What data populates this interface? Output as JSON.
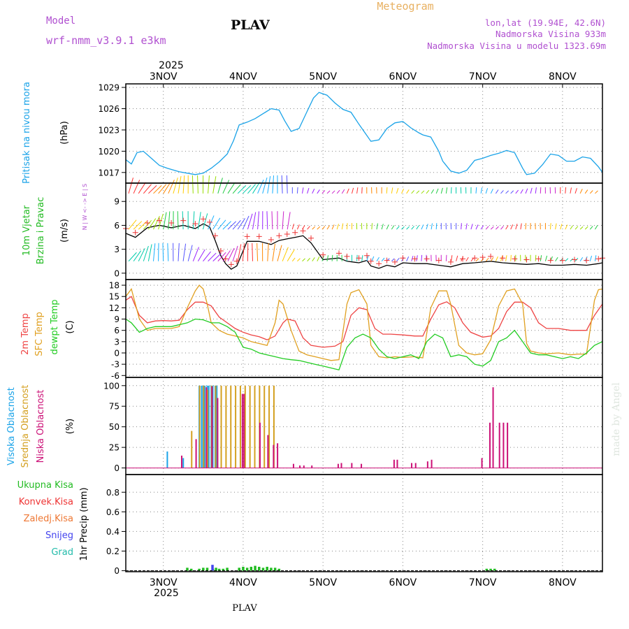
{
  "header": {
    "model_label": "Model",
    "model_value": "wrf-nmm_v3.9.1 e3km",
    "station": "PLAV",
    "chart_title": "Meteogram",
    "coords": "lon,lat (19.94E, 42.6N)",
    "elevation": "Nadmorska Visina 933m",
    "model_elevation": "Nadmorska Visina u modelu 1323.69m",
    "watermark": "made by Angel",
    "footer_station": "PLAV"
  },
  "time_axis": {
    "year": "2025",
    "labels": [
      "3NOV",
      "4NOV",
      "5NOV",
      "6NOV",
      "7NOV",
      "8NOV"
    ],
    "range_days": [
      2.53,
      8.5
    ]
  },
  "colors": {
    "pressure": "#1aa3e8",
    "wind_label": "#22bb22",
    "t2m": "#ee4444",
    "tsfc": "#e0a020",
    "dewpt": "#22cc22",
    "cloud_high": "#1aa3e8",
    "cloud_mid": "#d4a020",
    "cloud_low": "#cc1177",
    "precip_total": "#22bb22",
    "precip_conv": "#ee3333",
    "precip_freezing": "#ee7733",
    "snow": "#4444ee",
    "graupel": "#22bbaa",
    "title_purple": "#b050d0",
    "meteogram_title": "#e8b060"
  },
  "chart_data": [
    {
      "type": "line",
      "title": "Pritisak na nivou mora",
      "ylabel": "(hPa)",
      "ylim": [
        1015.5,
        1029.5
      ],
      "yticks": [
        1017,
        1020,
        1023,
        1026,
        1029
      ],
      "series": [
        {
          "name": "Pritisak na nivou mora",
          "x": [
            2.53,
            2.6,
            2.67,
            2.75,
            2.85,
            2.95,
            3.05,
            3.2,
            3.3,
            3.4,
            3.5,
            3.6,
            3.7,
            3.8,
            3.88,
            3.95,
            4.05,
            4.15,
            4.25,
            4.35,
            4.45,
            4.52,
            4.6,
            4.7,
            4.8,
            4.88,
            4.95,
            5.05,
            5.15,
            5.25,
            5.35,
            5.45,
            5.55,
            5.6,
            5.7,
            5.8,
            5.9,
            6.0,
            6.1,
            6.2,
            6.25,
            6.35,
            6.45,
            6.5,
            6.6,
            6.7,
            6.8,
            6.9,
            7.0,
            7.1,
            7.2,
            7.3,
            7.4,
            7.5,
            7.55,
            7.65,
            7.75,
            7.85,
            7.95,
            8.05,
            8.15,
            8.25,
            8.35,
            8.45,
            8.5
          ],
          "values": [
            1018.8,
            1018.2,
            1019.8,
            1020.0,
            1019.0,
            1018.0,
            1017.6,
            1017.1,
            1016.9,
            1016.7,
            1016.9,
            1017.6,
            1018.5,
            1019.6,
            1021.5,
            1023.7,
            1024.1,
            1024.6,
            1025.3,
            1026.0,
            1025.8,
            1024.3,
            1022.8,
            1023.2,
            1025.6,
            1027.5,
            1028.3,
            1027.9,
            1026.8,
            1025.9,
            1025.5,
            1023.8,
            1022.2,
            1021.4,
            1021.6,
            1023.2,
            1024.0,
            1024.2,
            1023.3,
            1022.6,
            1022.3,
            1022.0,
            1020.0,
            1018.6,
            1017.2,
            1016.9,
            1017.3,
            1018.7,
            1019.0,
            1019.4,
            1019.7,
            1020.1,
            1019.8,
            1017.6,
            1016.7,
            1016.9,
            1018.1,
            1019.6,
            1019.4,
            1018.6,
            1018.6,
            1019.2,
            1019.0,
            1017.8,
            1017.0
          ],
          "color": "#1aa3e8"
        }
      ]
    },
    {
      "type": "line",
      "title": "10m Vjetar Brzina i Pravac",
      "ylabel": "(m/s)",
      "compass": "N | W <- -> E | S",
      "ylim": [
        -0.8,
        11.3
      ],
      "yticks": [
        0,
        3,
        6,
        9
      ],
      "series": [
        {
          "name": "Brzina vjetra",
          "x": [
            2.53,
            2.65,
            2.8,
            2.95,
            3.1,
            3.25,
            3.4,
            3.5,
            3.58,
            3.65,
            3.72,
            3.78,
            3.85,
            3.92,
            4.05,
            4.2,
            4.35,
            4.45,
            4.55,
            4.65,
            4.75,
            4.85,
            5.0,
            5.2,
            5.3,
            5.45,
            5.55,
            5.6,
            5.7,
            5.8,
            5.9,
            6.0,
            6.15,
            6.3,
            6.45,
            6.6,
            6.75,
            6.9,
            7.0,
            7.1,
            7.25,
            7.4,
            7.55,
            7.7,
            7.85,
            8.0,
            8.15,
            8.3,
            8.45,
            8.5
          ],
          "values": [
            5.0,
            4.5,
            5.7,
            6.0,
            5.7,
            6.0,
            5.6,
            6.2,
            5.8,
            4.1,
            2.2,
            1.2,
            0.5,
            0.9,
            4.0,
            4.0,
            3.6,
            4.1,
            4.3,
            4.5,
            4.7,
            3.8,
            1.7,
            1.9,
            1.5,
            1.3,
            1.6,
            0.9,
            0.6,
            1.0,
            0.8,
            1.3,
            1.2,
            1.2,
            1.0,
            0.8,
            1.2,
            1.3,
            1.4,
            1.5,
            1.3,
            1.2,
            1.1,
            1.2,
            1.0,
            1.0,
            1.1,
            1.0,
            1.2,
            1.3
          ],
          "color": "#000000"
        }
      ],
      "wind_rows_ms": [
        10,
        5.5,
        1.5
      ]
    },
    {
      "type": "line",
      "title": "2m Temp / SFC Temp / dewpt Temp",
      "ylabel": "(C)",
      "ylim": [
        -6.5,
        19.5
      ],
      "yticks": [
        -6,
        -3,
        0,
        3,
        6,
        9,
        12,
        15,
        18
      ],
      "series": [
        {
          "name": "2m Temp",
          "color": "#ee4444",
          "x": [
            2.53,
            2.6,
            2.7,
            2.8,
            2.9,
            3.0,
            3.1,
            3.2,
            3.3,
            3.4,
            3.5,
            3.6,
            3.7,
            3.8,
            3.9,
            4.0,
            4.1,
            4.2,
            4.3,
            4.4,
            4.5,
            4.55,
            4.65,
            4.75,
            4.85,
            5.0,
            5.15,
            5.25,
            5.35,
            5.45,
            5.55,
            5.65,
            5.75,
            5.85,
            6.0,
            6.15,
            6.25,
            6.35,
            6.45,
            6.55,
            6.65,
            6.75,
            6.85,
            7.0,
            7.1,
            7.2,
            7.3,
            7.4,
            7.5,
            7.6,
            7.7,
            7.8,
            7.95,
            8.1,
            8.2,
            8.3,
            8.4,
            8.5
          ],
          "values": [
            14.0,
            15.0,
            10.0,
            8.0,
            8.5,
            8.6,
            8.5,
            8.7,
            11.5,
            13.5,
            13.5,
            12.5,
            9.5,
            8.0,
            6.5,
            5.5,
            4.8,
            4.3,
            3.5,
            4.5,
            8.0,
            9.0,
            8.5,
            4.0,
            2.0,
            1.5,
            1.8,
            3.0,
            10.0,
            12.0,
            11.5,
            6.5,
            5.0,
            5.0,
            4.8,
            4.5,
            4.5,
            9.0,
            12.8,
            13.6,
            12.0,
            8.0,
            5.5,
            4.2,
            4.5,
            6.5,
            11.0,
            13.5,
            13.5,
            12.0,
            8.0,
            6.5,
            6.5,
            6.0,
            6.0,
            6.0,
            10.0,
            13.0
          ]
        },
        {
          "name": "SFC Temp",
          "color": "#e0a020",
          "x": [
            2.53,
            2.6,
            2.7,
            2.8,
            2.9,
            3.0,
            3.1,
            3.2,
            3.3,
            3.4,
            3.45,
            3.5,
            3.55,
            3.6,
            3.7,
            3.8,
            3.9,
            4.0,
            4.1,
            4.2,
            4.3,
            4.4,
            4.45,
            4.5,
            4.6,
            4.7,
            4.8,
            4.9,
            5.0,
            5.1,
            5.2,
            5.3,
            5.35,
            5.45,
            5.55,
            5.6,
            5.7,
            5.8,
            5.9,
            6.0,
            6.15,
            6.25,
            6.35,
            6.45,
            6.55,
            6.6,
            6.7,
            6.8,
            6.9,
            7.0,
            7.1,
            7.2,
            7.3,
            7.4,
            7.5,
            7.55,
            7.6,
            7.7,
            7.8,
            7.95,
            8.1,
            8.2,
            8.3,
            8.4,
            8.45,
            8.5
          ],
          "values": [
            15.0,
            17.0,
            9.0,
            6.0,
            6.5,
            6.5,
            6.5,
            7.0,
            12.0,
            16.5,
            18.0,
            17.0,
            13.0,
            8.0,
            6.0,
            5.0,
            4.5,
            4.0,
            3.0,
            2.5,
            2.0,
            8.0,
            14.0,
            13.0,
            6.0,
            0.5,
            -0.5,
            -1.0,
            -1.5,
            -2.0,
            -1.8,
            13.0,
            16.0,
            16.8,
            13.0,
            2.0,
            -1.0,
            -1.3,
            -1.0,
            -1.2,
            -1.0,
            -1.3,
            12.0,
            16.5,
            16.5,
            13.0,
            2.0,
            0.0,
            -0.5,
            -0.2,
            3.5,
            12.5,
            16.5,
            17.0,
            13.0,
            2.5,
            0.5,
            0.0,
            -0.2,
            0.0,
            -0.5,
            -0.3,
            -0.3,
            14.0,
            16.8,
            17.0
          ]
        },
        {
          "name": "dewpt Temp",
          "color": "#22cc22",
          "x": [
            2.53,
            2.6,
            2.7,
            2.8,
            2.9,
            3.0,
            3.1,
            3.2,
            3.3,
            3.4,
            3.5,
            3.6,
            3.7,
            3.8,
            3.9,
            4.0,
            4.1,
            4.2,
            4.3,
            4.4,
            4.5,
            4.6,
            4.7,
            4.8,
            4.9,
            5.0,
            5.1,
            5.2,
            5.3,
            5.4,
            5.5,
            5.6,
            5.7,
            5.8,
            5.9,
            6.0,
            6.1,
            6.2,
            6.3,
            6.4,
            6.5,
            6.6,
            6.7,
            6.8,
            6.9,
            7.0,
            7.1,
            7.2,
            7.3,
            7.4,
            7.5,
            7.6,
            7.7,
            7.8,
            7.9,
            8.0,
            8.1,
            8.2,
            8.3,
            8.4,
            8.5
          ],
          "values": [
            9.0,
            8.0,
            5.5,
            6.5,
            7.0,
            7.0,
            7.0,
            7.5,
            8.0,
            9.0,
            8.8,
            8.0,
            8.0,
            7.0,
            5.5,
            1.5,
            1.0,
            0.0,
            -0.5,
            -1.0,
            -1.5,
            -1.8,
            -2.0,
            -2.5,
            -3.0,
            -3.5,
            -4.0,
            -4.5,
            1.5,
            4.0,
            5.0,
            4.0,
            1.0,
            -1.0,
            -1.5,
            -1.0,
            -0.5,
            -1.5,
            3.0,
            5.0,
            4.0,
            -1.0,
            -0.5,
            -1.0,
            -3.0,
            -3.5,
            -2.0,
            3.0,
            4.0,
            6.0,
            3.0,
            0.0,
            -0.5,
            -0.5,
            -1.0,
            -1.5,
            -1.0,
            -1.5,
            0.0,
            2.0,
            3.0
          ]
        }
      ]
    },
    {
      "type": "bar",
      "title": "Visoka / Srednja / Niska Oblacnost",
      "ylabel": "(%)",
      "ylim": [
        -8,
        110
      ],
      "yticks": [
        0,
        25,
        50,
        75,
        100
      ],
      "series": [
        {
          "name": "Visoka Oblacnost",
          "color": "#1aa3e8",
          "x": [
            3.05,
            3.25,
            3.45,
            3.48,
            3.5,
            3.52,
            3.55,
            3.57,
            3.6,
            3.62,
            3.65,
            3.67
          ],
          "values": [
            20,
            12,
            100,
            100,
            100,
            100,
            100,
            100,
            100,
            100,
            100,
            100
          ]
        },
        {
          "name": "Srednja Oblacnost",
          "color": "#d4a020",
          "x": [
            3.35,
            3.45,
            3.5,
            3.55,
            3.6,
            3.65,
            3.72,
            3.78,
            3.84,
            3.9,
            3.96,
            4.02,
            4.08,
            4.14,
            4.2,
            4.26,
            4.32,
            4.38
          ],
          "values": [
            45,
            100,
            100,
            95,
            100,
            100,
            100,
            100,
            100,
            100,
            100,
            100,
            100,
            100,
            100,
            100,
            100,
            100
          ]
        },
        {
          "name": "Niska Oblacnost",
          "color": "#cc1177",
          "x": [
            3.22,
            3.4,
            3.53,
            3.6,
            3.67,
            3.98,
            4.0,
            4.2,
            4.3,
            4.37,
            4.42,
            4.62,
            4.7,
            4.75,
            4.85,
            5.18,
            5.22,
            5.35,
            5.47,
            5.88,
            5.92,
            6.1,
            6.15,
            6.3,
            6.35,
            6.98,
            7.08,
            7.12,
            7.2,
            7.25,
            7.3
          ],
          "values": [
            15,
            35,
            98,
            99,
            85,
            90,
            90,
            55,
            40,
            28,
            30,
            5,
            3,
            3,
            3,
            5,
            6,
            6,
            5,
            10,
            10,
            6,
            6,
            8,
            10,
            12,
            55,
            98,
            55,
            55,
            55
          ]
        }
      ]
    },
    {
      "type": "bar",
      "title": "1hr Precip",
      "ylabel": "1hr Precip (mm)",
      "ylim": [
        -0.01,
        0.98
      ],
      "yticks": [
        0,
        0.2,
        0.4,
        0.6,
        0.8
      ],
      "ytick_labels": [
        "0",
        "0.2",
        "0.4",
        "0.6",
        "0.8"
      ],
      "legend": [
        "Ukupna Kisa",
        "Konvek.Kisa",
        "Zaledj.Kisa",
        "Snijeg",
        "Grad"
      ],
      "series": [
        {
          "name": "Ukupna Kisa",
          "color": "#22bb22",
          "x": [
            3.3,
            3.35,
            3.45,
            3.5,
            3.55,
            3.62,
            3.66,
            3.7,
            3.75,
            3.8,
            3.95,
            4.0,
            4.05,
            4.1,
            4.15,
            4.2,
            4.25,
            4.3,
            4.35,
            4.4,
            4.45,
            7.05,
            7.1,
            7.15
          ],
          "values": [
            0.03,
            0.02,
            0.02,
            0.03,
            0.03,
            0.02,
            0.03,
            0.02,
            0.02,
            0.03,
            0.03,
            0.04,
            0.03,
            0.04,
            0.05,
            0.04,
            0.03,
            0.04,
            0.03,
            0.03,
            0.02,
            0.02,
            0.02,
            0.02
          ]
        },
        {
          "name": "Konvek.Kisa",
          "color": "#ee3333",
          "x": [],
          "values": []
        },
        {
          "name": "Zaledj.Kisa",
          "color": "#ee7733",
          "x": [],
          "values": []
        },
        {
          "name": "Snijeg",
          "color": "#4444ee",
          "x": [
            3.6
          ],
          "values": [
            0.06
          ]
        },
        {
          "name": "Grad",
          "color": "#22bbaa",
          "x": [],
          "values": []
        }
      ]
    }
  ]
}
